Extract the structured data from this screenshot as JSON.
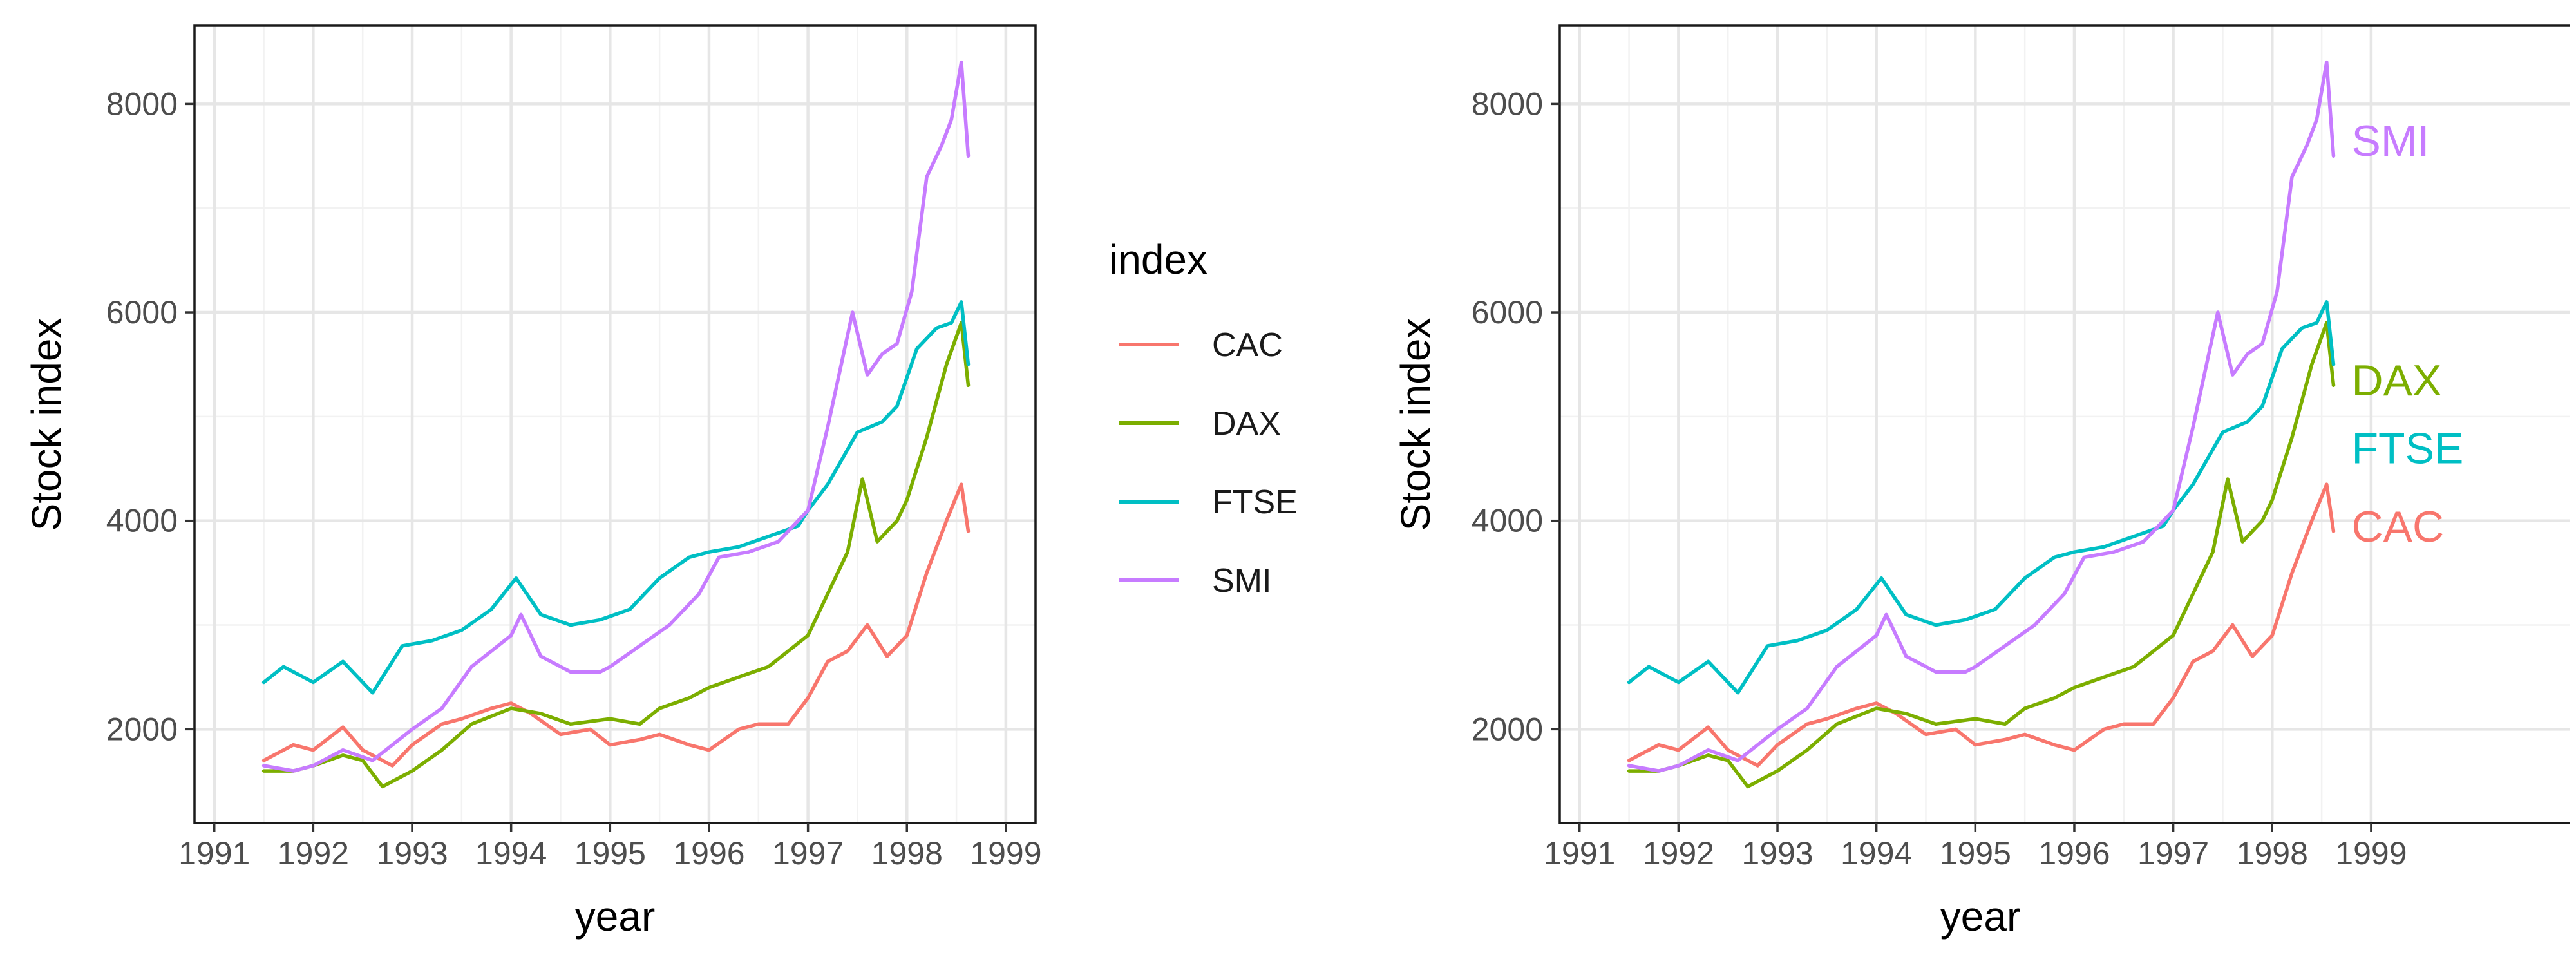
{
  "chart_data": [
    {
      "type": "line",
      "title": "",
      "xlabel": "year",
      "ylabel": "Stock index",
      "xlim": [
        1990.8,
        1999.3
      ],
      "ylim": [
        1100,
        8750
      ],
      "x_ticks": [
        1991,
        1992,
        1993,
        1994,
        1995,
        1996,
        1997,
        1998,
        1999
      ],
      "y_ticks": [
        2000,
        4000,
        6000,
        8000
      ],
      "grid": true,
      "legend": {
        "title": "index",
        "placement": "right",
        "entries": [
          "CAC",
          "DAX",
          "FTSE",
          "SMI"
        ]
      },
      "series": [
        {
          "name": "CAC",
          "color": "#F8766D",
          "x": [
            1991.5,
            1991.8,
            1992.0,
            1992.3,
            1992.5,
            1992.8,
            1993.0,
            1993.3,
            1993.5,
            1993.8,
            1994.0,
            1994.2,
            1994.5,
            1994.8,
            1995.0,
            1995.3,
            1995.5,
            1995.8,
            1996.0,
            1996.3,
            1996.5,
            1996.8,
            1997.0,
            1997.2,
            1997.4,
            1997.6,
            1997.8,
            1998.0,
            1998.2,
            1998.4,
            1998.55,
            1998.62
          ],
          "y": [
            1700,
            1850,
            1800,
            2020,
            1800,
            1650,
            1850,
            2050,
            2100,
            2200,
            2250,
            2150,
            1950,
            2000,
            1850,
            1900,
            1950,
            1850,
            1800,
            2000,
            2050,
            2050,
            2300,
            2650,
            2750,
            3000,
            2700,
            2900,
            3500,
            4000,
            4350,
            3900
          ]
        },
        {
          "name": "DAX",
          "color": "#7CAE00",
          "x": [
            1991.5,
            1991.8,
            1992.0,
            1992.3,
            1992.5,
            1992.7,
            1993.0,
            1993.3,
            1993.6,
            1994.0,
            1994.3,
            1994.6,
            1995.0,
            1995.3,
            1995.5,
            1995.8,
            1996.0,
            1996.3,
            1996.6,
            1996.8,
            1997.0,
            1997.2,
            1997.4,
            1997.55,
            1997.7,
            1997.9,
            1998.0,
            1998.2,
            1998.4,
            1998.55,
            1998.62
          ],
          "y": [
            1600,
            1600,
            1650,
            1750,
            1700,
            1450,
            1600,
            1800,
            2050,
            2200,
            2150,
            2050,
            2100,
            2050,
            2200,
            2300,
            2400,
            2500,
            2600,
            2750,
            2900,
            3300,
            3700,
            4400,
            3800,
            4000,
            4200,
            4800,
            5500,
            5900,
            5300
          ]
        },
        {
          "name": "FTSE",
          "color": "#00BFC4",
          "x": [
            1991.5,
            1991.7,
            1992.0,
            1992.3,
            1992.6,
            1992.9,
            1993.2,
            1993.5,
            1993.8,
            1994.05,
            1994.3,
            1994.6,
            1994.9,
            1995.2,
            1995.5,
            1995.8,
            1996.0,
            1996.3,
            1996.6,
            1996.9,
            1997.0,
            1997.2,
            1997.5,
            1997.75,
            1997.9,
            1998.1,
            1998.3,
            1998.45,
            1998.55,
            1998.62
          ],
          "y": [
            2450,
            2600,
            2450,
            2650,
            2350,
            2800,
            2850,
            2950,
            3150,
            3450,
            3100,
            3000,
            3050,
            3150,
            3450,
            3650,
            3700,
            3750,
            3850,
            3950,
            4100,
            4350,
            4850,
            4950,
            5100,
            5650,
            5850,
            5900,
            6100,
            5500
          ]
        },
        {
          "name": "SMI",
          "color": "#C77CFF",
          "x": [
            1991.5,
            1991.8,
            1992.0,
            1992.3,
            1992.6,
            1993.0,
            1993.3,
            1993.6,
            1994.0,
            1994.1,
            1994.3,
            1994.6,
            1994.9,
            1995.0,
            1995.3,
            1995.6,
            1995.9,
            1996.1,
            1996.4,
            1996.7,
            1997.0,
            1997.2,
            1997.45,
            1997.6,
            1997.75,
            1997.9,
            1998.05,
            1998.2,
            1998.35,
            1998.45,
            1998.55,
            1998.62
          ],
          "y": [
            1650,
            1600,
            1650,
            1800,
            1700,
            2000,
            2200,
            2600,
            2900,
            3100,
            2700,
            2550,
            2550,
            2600,
            2800,
            3000,
            3300,
            3650,
            3700,
            3800,
            4100,
            4900,
            6000,
            5400,
            5600,
            5700,
            6200,
            7300,
            7600,
            7850,
            8400,
            7500
          ]
        }
      ]
    },
    {
      "type": "line",
      "title": "",
      "xlabel": "year",
      "ylabel": "Stock index",
      "xlim": [
        1990.8,
        1999.3
      ],
      "ylim": [
        1100,
        8750
      ],
      "x_ticks": [
        1991,
        1992,
        1993,
        1994,
        1995,
        1996,
        1997,
        1998,
        1999
      ],
      "y_ticks": [
        2000,
        4000,
        6000,
        8000
      ],
      "grid": true,
      "legend": "none",
      "direct_labels": [
        {
          "series": "SMI",
          "text": "SMI",
          "y": 7650,
          "color": "#C77CFF"
        },
        {
          "series": "DAX",
          "text": "DAX",
          "y": 5350,
          "color": "#7CAE00"
        },
        {
          "series": "FTSE",
          "text": "FTSE",
          "y": 4700,
          "color": "#00BFC4"
        },
        {
          "series": "CAC",
          "text": "CAC",
          "y": 3950,
          "color": "#F8766D"
        }
      ],
      "series_ref": "same as chart 1"
    }
  ]
}
